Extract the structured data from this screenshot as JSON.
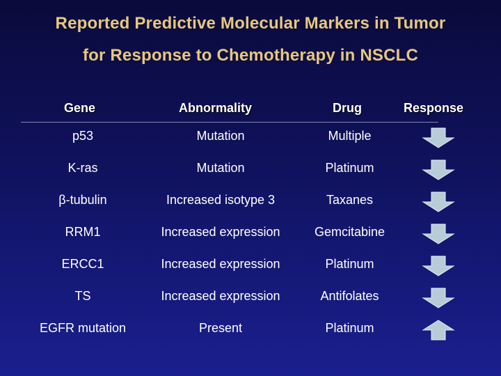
{
  "title": {
    "line1": "Reported Predictive Molecular Markers in Tumor",
    "line2": "for Response to Chemotherapy in NSCLC"
  },
  "headers": {
    "gene": "Gene",
    "abnormality": "Abnormality",
    "drug": "Drug",
    "response": "Response"
  },
  "rows": [
    {
      "gene": "p53",
      "abnormality": "Mutation",
      "drug": "Multiple",
      "response": "down-arrow-icon"
    },
    {
      "gene": "K-ras",
      "abnormality": "Mutation",
      "drug": "Platinum",
      "response": "down-arrow-icon"
    },
    {
      "gene": "β-tubulin",
      "abnormality": "Increased isotype 3",
      "drug": "Taxanes",
      "response": "down-arrow-icon"
    },
    {
      "gene": "RRM1",
      "abnormality": "Increased expression",
      "drug": "Gemcitabine",
      "response": "down-arrow-icon"
    },
    {
      "gene": "ERCC1",
      "abnormality": "Increased expression",
      "drug": "Platinum",
      "response": "down-arrow-icon"
    },
    {
      "gene": "TS",
      "abnormality": "Increased expression",
      "drug": "Antifolates",
      "response": "down-arrow-icon"
    },
    {
      "gene": "EGFR mutation",
      "abnormality": "Present",
      "drug": "Platinum",
      "response": "up-arrow-icon"
    }
  ],
  "colors": {
    "title": "#e8c87a",
    "arrow_fill": "#b8ccd8",
    "arrow_edge": "#e6f0f6"
  }
}
